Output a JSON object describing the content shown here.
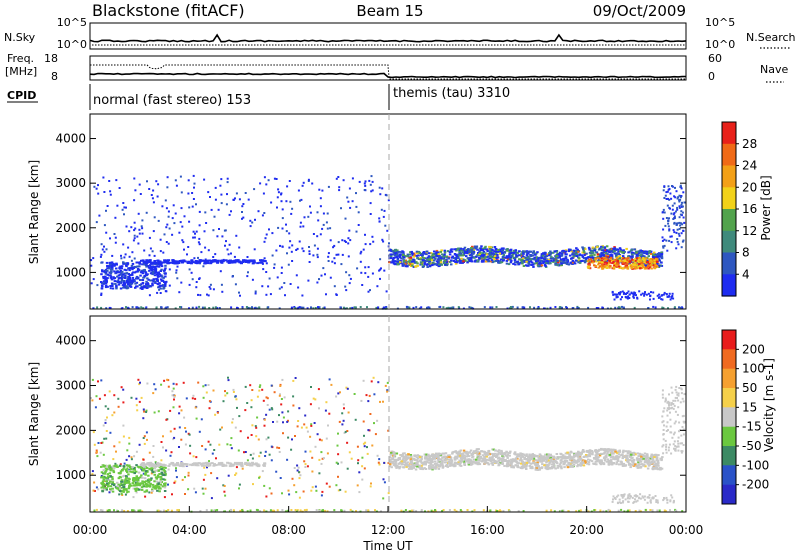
{
  "header": {
    "site": "Blackstone (fitACF)",
    "beam": "Beam 15",
    "date": "09/Oct/2009"
  },
  "strip_nsky": {
    "left_label": "N.Sky",
    "left_ticks": [
      "10^5",
      "10^0"
    ],
    "right_label": "N.Search",
    "right_ticks": [
      "10^5",
      "10^0"
    ]
  },
  "strip_freq": {
    "left_label_1": "Freq.",
    "left_label_2": "[MHz]",
    "left_ticks": [
      "18",
      "8"
    ],
    "right_label": "Nave",
    "right_ticks": [
      "60",
      "0"
    ]
  },
  "cpid": {
    "label": "CPID",
    "segments": [
      {
        "name": "normal (fast stereo) 153",
        "start_hour": 0
      },
      {
        "name": "themis (tau) 3310",
        "start_hour": 12
      }
    ]
  },
  "chart_data": [
    {
      "type": "heatmap",
      "title": "",
      "xlabel": "Time UT",
      "ylabel": "Slant Range [km]",
      "xlim_hours": [
        0,
        24
      ],
      "ylim_km": [
        180,
        4550
      ],
      "x_ticks": [
        "00:00",
        "04:00",
        "08:00",
        "12:00",
        "16:00",
        "20:00",
        "00:00"
      ],
      "x_tick_hours": [
        0,
        4,
        8,
        12,
        16,
        20,
        24
      ],
      "y_ticks": [
        1000,
        2000,
        3000,
        4000
      ],
      "colorbar": {
        "label": "Power [dB]",
        "ticks": [
          "4",
          "8",
          "12",
          "16",
          "20",
          "24",
          "28"
        ],
        "colors": [
          "#1e2cf0",
          "#2e57c0",
          "#3f8a7c",
          "#52a34c",
          "#f2d21a",
          "#f3a017",
          "#f06a17",
          "#e8211a"
        ]
      },
      "features": [
        {
          "label": "band ~1300 km 12:00-23:00",
          "min_hour": 12,
          "max_hour": 23,
          "range_km": 1350,
          "peak_db": 28
        },
        {
          "label": "scattered echoes 00:00-12:00",
          "min_hour": 0,
          "max_hour": 12,
          "range_km": [
            500,
            3100
          ]
        }
      ]
    },
    {
      "type": "heatmap",
      "title": "",
      "xlabel": "Time UT",
      "ylabel": "Slant Range [km]",
      "xlim_hours": [
        0,
        24
      ],
      "ylim_km": [
        180,
        4550
      ],
      "x_ticks": [
        "00:00",
        "04:00",
        "08:00",
        "12:00",
        "16:00",
        "20:00",
        "00:00"
      ],
      "x_tick_hours": [
        0,
        4,
        8,
        12,
        16,
        20,
        24
      ],
      "y_ticks": [
        1000,
        2000,
        3000,
        4000
      ],
      "colorbar": {
        "label": "Velocity [m s-1]",
        "ticks": [
          "200",
          "100",
          "50",
          "15",
          "-15",
          "-50",
          "-100",
          "-200"
        ],
        "colors": [
          "#2a2ac8",
          "#2a52c8",
          "#3c8a64",
          "#6bc840",
          "#c8c8c8",
          "#f5d04a",
          "#f5a030",
          "#f06a20",
          "#e81c1c"
        ]
      }
    }
  ]
}
